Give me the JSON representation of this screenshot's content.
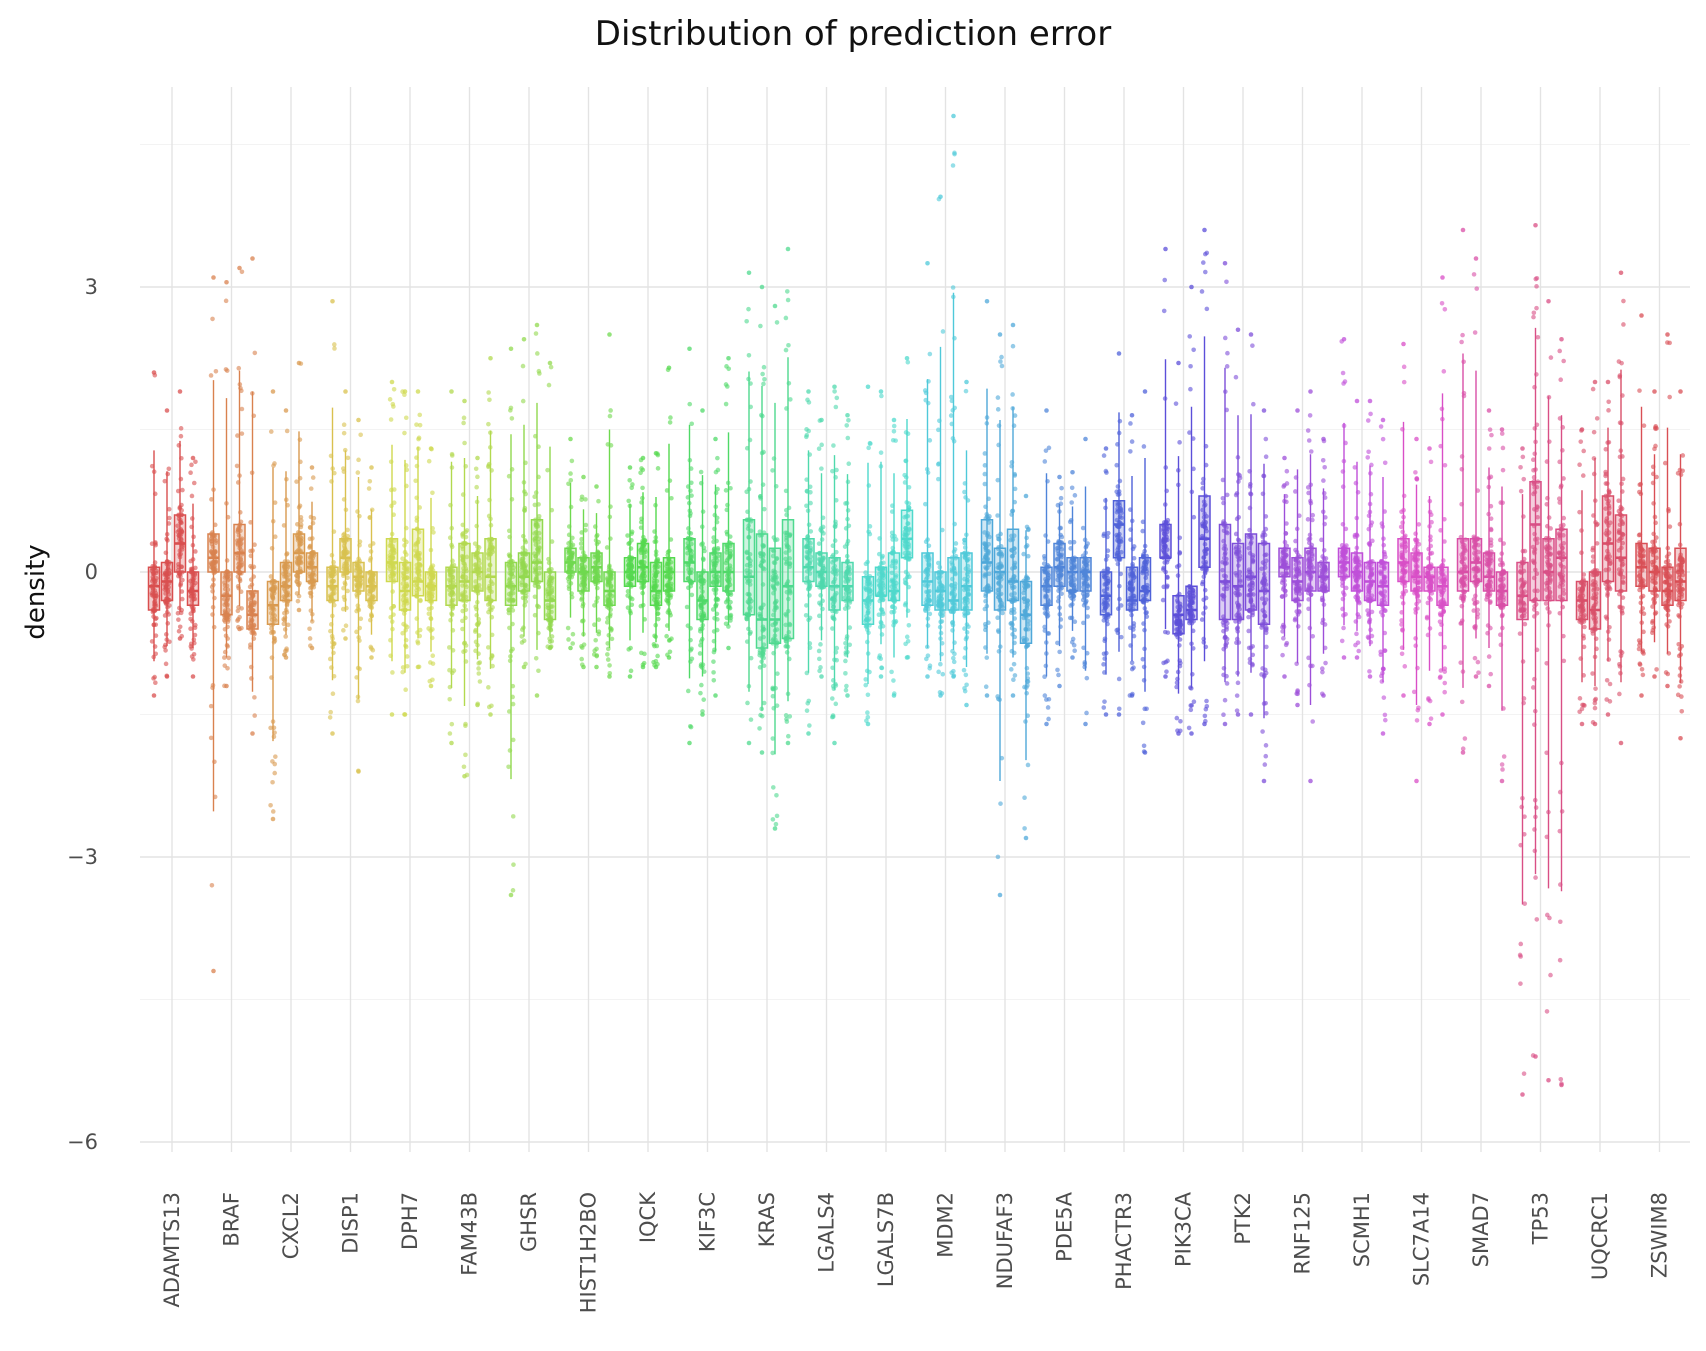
{
  "chart_data": {
    "type": "boxplot",
    "title": "Distribution of prediction error",
    "xlabel": "",
    "ylabel": "density",
    "ylim": [
      -6.0,
      5.0
    ],
    "yticks": [
      3,
      0,
      -3,
      -6
    ],
    "ytick_labels": [
      "3",
      "0",
      "−3",
      "−6"
    ],
    "grid": true,
    "legend": "none",
    "boxes_per_category": 4,
    "categories": [
      "ADAMTS13",
      "BRAF",
      "CXCL2",
      "DISP1",
      "DPH7",
      "FAM43B",
      "GHSR",
      "HIST1H2BO",
      "IQCK",
      "KIF3C",
      "KRAS",
      "LGALS4",
      "LGALS7B",
      "MDM2",
      "NDUFAF3",
      "PDE5A",
      "PHACTR3",
      "PIK3CA",
      "PTK2",
      "RNF125",
      "SCMH1",
      "SLC7A14",
      "SMAD7",
      "TP53",
      "UQCRC1",
      "ZSWIM8"
    ],
    "colors": [
      "#d94f4f",
      "#d9824f",
      "#d99a4f",
      "#d9c14f",
      "#cfd94f",
      "#b2d94f",
      "#92d94f",
      "#6fd94f",
      "#55d94f",
      "#4fd968",
      "#4fd98f",
      "#4fd9ad",
      "#4fd9cc",
      "#4fc9d9",
      "#4fa8d9",
      "#4f85d9",
      "#4f62d9",
      "#5c4fd9",
      "#7e4fd9",
      "#9d4fd9",
      "#c04fd9",
      "#d94fc7",
      "#d94fa7",
      "#d94f86",
      "#d94f69",
      "#d94f55"
    ],
    "series": [
      {
        "name": "ADAMTS13",
        "boxes": [
          [
            -1.3,
            -0.4,
            -0.15,
            0.05,
            2.1
          ],
          [
            -1.1,
            -0.3,
            -0.1,
            0.1,
            1.7
          ],
          [
            -0.7,
            0.0,
            0.3,
            0.6,
            1.9
          ],
          [
            -1.1,
            -0.35,
            -0.2,
            0.0,
            1.2
          ]
        ]
      },
      {
        "name": "BRAF",
        "boxes": [
          [
            -4.2,
            0.0,
            0.15,
            0.4,
            3.1
          ],
          [
            -1.2,
            -0.45,
            -0.25,
            0.0,
            3.05
          ],
          [
            -0.6,
            0.0,
            0.2,
            0.5,
            3.2
          ],
          [
            -1.7,
            -0.6,
            -0.45,
            -0.2,
            3.3
          ]
        ]
      },
      {
        "name": "CXCL2",
        "boxes": [
          [
            -2.6,
            -0.55,
            -0.35,
            -0.1,
            1.9
          ],
          [
            -0.9,
            -0.3,
            -0.15,
            0.1,
            1.7
          ],
          [
            -0.4,
            0.0,
            0.2,
            0.4,
            2.2
          ],
          [
            -0.8,
            -0.1,
            0.05,
            0.2,
            1.1
          ]
        ]
      },
      {
        "name": "DISP1",
        "boxes": [
          [
            -1.7,
            -0.3,
            -0.15,
            0.05,
            2.85
          ],
          [
            -0.7,
            0.0,
            0.15,
            0.35,
            1.9
          ],
          [
            -2.1,
            -0.2,
            -0.05,
            0.1,
            1.6
          ],
          [
            -0.9,
            -0.3,
            -0.15,
            0.0,
            1.1
          ]
        ]
      },
      {
        "name": "DPH7",
        "boxes": [
          [
            -1.5,
            -0.1,
            0.1,
            0.35,
            2.0
          ],
          [
            -1.5,
            -0.4,
            -0.2,
            0.1,
            1.9
          ],
          [
            -1.0,
            -0.25,
            -0.1,
            0.45,
            1.9
          ],
          [
            -1.2,
            -0.3,
            -0.15,
            0.0,
            1.3
          ]
        ]
      },
      {
        "name": "FAM43B",
        "boxes": [
          [
            -1.8,
            -0.35,
            -0.15,
            0.05,
            1.9
          ],
          [
            -2.15,
            -0.3,
            -0.1,
            0.3,
            1.8
          ],
          [
            -1.4,
            -0.2,
            0.0,
            0.2,
            1.2
          ],
          [
            -1.5,
            -0.3,
            -0.05,
            0.35,
            2.25
          ]
        ]
      },
      {
        "name": "GHSR",
        "boxes": [
          [
            -3.4,
            -0.35,
            -0.15,
            0.1,
            2.35
          ],
          [
            -1.0,
            -0.2,
            -0.05,
            0.2,
            2.45
          ],
          [
            -1.3,
            -0.1,
            0.1,
            0.55,
            2.6
          ],
          [
            -0.8,
            -0.5,
            -0.3,
            0.0,
            2.2
          ]
        ]
      },
      {
        "name": "HIST1H2BO",
        "boxes": [
          [
            -0.8,
            0.0,
            0.1,
            0.25,
            1.4
          ],
          [
            -1.0,
            -0.2,
            0.0,
            0.15,
            1.0
          ],
          [
            -1.0,
            -0.1,
            0.05,
            0.2,
            0.9
          ],
          [
            -1.1,
            -0.35,
            -0.2,
            0.0,
            2.5
          ]
        ]
      },
      {
        "name": "IQCK",
        "boxes": [
          [
            -1.1,
            -0.15,
            0.0,
            0.15,
            1.1
          ],
          [
            -1.0,
            -0.1,
            0.05,
            0.3,
            1.2
          ],
          [
            -1.0,
            -0.35,
            -0.2,
            0.1,
            1.25
          ],
          [
            -0.9,
            -0.2,
            0.0,
            0.15,
            2.15
          ]
        ]
      },
      {
        "name": "KIF3C",
        "boxes": [
          [
            -1.8,
            -0.1,
            0.1,
            0.35,
            2.35
          ],
          [
            -1.5,
            -0.5,
            -0.3,
            0.0,
            1.7
          ],
          [
            -1.3,
            -0.15,
            0.0,
            0.2,
            1.4
          ],
          [
            -0.8,
            -0.2,
            0.0,
            0.3,
            2.25
          ]
        ]
      },
      {
        "name": "KRAS",
        "boxes": [
          [
            -1.8,
            -0.45,
            -0.05,
            0.55,
            3.15
          ],
          [
            -1.9,
            -0.8,
            -0.5,
            0.4,
            3.0
          ],
          [
            -2.7,
            -0.75,
            -0.5,
            0.25,
            2.8
          ],
          [
            -1.8,
            -0.7,
            -0.15,
            0.55,
            3.4
          ]
        ]
      },
      {
        "name": "LGALS4",
        "boxes": [
          [
            -1.7,
            -0.1,
            0.05,
            0.35,
            1.9
          ],
          [
            -1.1,
            -0.15,
            0.0,
            0.2,
            1.6
          ],
          [
            -1.8,
            -0.4,
            -0.15,
            0.15,
            1.95
          ],
          [
            -1.3,
            -0.3,
            -0.15,
            0.1,
            1.65
          ]
        ]
      },
      {
        "name": "LGALS7B",
        "boxes": [
          [
            -1.6,
            -0.55,
            -0.3,
            -0.05,
            1.95
          ],
          [
            -1.1,
            -0.25,
            -0.25,
            0.05,
            1.9
          ],
          [
            -1.3,
            -0.3,
            -0.2,
            0.2,
            1.6
          ],
          [
            -0.9,
            0.15,
            0.35,
            0.65,
            2.25
          ]
        ]
      },
      {
        "name": "MDM2",
        "boxes": [
          [
            -1.1,
            -0.35,
            -0.1,
            0.2,
            3.25
          ],
          [
            -1.3,
            -0.4,
            -0.2,
            0.0,
            3.95
          ],
          [
            -1.1,
            -0.4,
            -0.3,
            0.15,
            4.8
          ],
          [
            -1.4,
            -0.4,
            -0.15,
            0.2,
            2.0
          ]
        ]
      },
      {
        "name": "NDUFAF3",
        "boxes": [
          [
            -1.3,
            -0.2,
            0.1,
            0.55,
            2.85
          ],
          [
            -3.4,
            -0.4,
            0.0,
            0.25,
            2.5
          ],
          [
            -1.3,
            -0.3,
            -0.1,
            0.45,
            2.6
          ],
          [
            -2.8,
            -0.75,
            -0.45,
            -0.1,
            0.8
          ]
        ]
      },
      {
        "name": "PDE5A",
        "boxes": [
          [
            -1.6,
            -0.35,
            -0.15,
            0.05,
            1.7
          ],
          [
            -1.2,
            -0.15,
            0.05,
            0.3,
            1.0
          ],
          [
            -0.9,
            -0.2,
            0.0,
            0.15,
            1.05
          ],
          [
            -1.6,
            -0.2,
            0.0,
            0.15,
            1.4
          ]
        ]
      },
      {
        "name": "PHACTR3",
        "boxes": [
          [
            -1.5,
            -0.45,
            -0.25,
            0.0,
            1.3
          ],
          [
            -1.5,
            0.15,
            0.5,
            0.75,
            2.3
          ],
          [
            -1.3,
            -0.4,
            -0.3,
            0.05,
            1.65
          ],
          [
            -1.9,
            -0.3,
            -0.2,
            0.15,
            1.9
          ]
        ]
      },
      {
        "name": "PIK3CA",
        "boxes": [
          [
            -1.1,
            0.15,
            0.15,
            0.5,
            3.4
          ],
          [
            -1.7,
            -0.65,
            -0.45,
            -0.25,
            2.2
          ],
          [
            -1.7,
            -0.5,
            -0.4,
            -0.15,
            3.0
          ],
          [
            -1.6,
            0.05,
            0.35,
            0.8,
            3.6
          ]
        ]
      },
      {
        "name": "PTK2",
        "boxes": [
          [
            -1.6,
            -0.5,
            -0.1,
            0.5,
            3.25
          ],
          [
            -1.5,
            -0.5,
            -0.15,
            0.3,
            2.55
          ],
          [
            -1.5,
            -0.4,
            -0.05,
            0.4,
            2.5
          ],
          [
            -2.2,
            -0.55,
            -0.2,
            0.3,
            1.7
          ]
        ]
      },
      {
        "name": "RNF125",
        "boxes": [
          [
            -1.1,
            -0.05,
            0.05,
            0.25,
            1.2
          ],
          [
            -1.4,
            -0.3,
            -0.1,
            0.15,
            1.7
          ],
          [
            -2.2,
            -0.2,
            0.0,
            0.25,
            1.9
          ],
          [
            -1.3,
            -0.2,
            -0.05,
            0.1,
            1.4
          ]
        ]
      },
      {
        "name": "SCMH1",
        "boxes": [
          [
            -0.9,
            -0.05,
            0.1,
            0.25,
            2.45
          ],
          [
            -0.9,
            -0.2,
            0.0,
            0.2,
            1.8
          ],
          [
            -1.1,
            -0.3,
            -0.1,
            0.1,
            1.8
          ],
          [
            -1.7,
            -0.35,
            -0.15,
            0.1,
            1.6
          ]
        ]
      },
      {
        "name": "SLC7A14",
        "boxes": [
          [
            -1.3,
            -0.1,
            0.1,
            0.35,
            2.4
          ],
          [
            -2.2,
            -0.2,
            -0.05,
            0.2,
            1.4
          ],
          [
            -1.6,
            -0.2,
            -0.05,
            0.05,
            1.3
          ],
          [
            -1.5,
            -0.35,
            -0.15,
            0.05,
            3.1
          ]
        ]
      },
      {
        "name": "SMAD7",
        "boxes": [
          [
            -1.9,
            -0.2,
            0.0,
            0.35,
            3.6
          ],
          [
            -1.1,
            -0.1,
            0.1,
            0.35,
            3.3
          ],
          [
            -1.2,
            -0.2,
            -0.05,
            0.2,
            1.7
          ],
          [
            -2.2,
            -0.35,
            -0.2,
            0.0,
            1.5
          ]
        ]
      },
      {
        "name": "TP53",
        "boxes": [
          [
            -5.5,
            -0.5,
            -0.25,
            0.1,
            1.3
          ],
          [
            -5.1,
            -0.3,
            0.5,
            0.95,
            3.65
          ],
          [
            -5.35,
            -0.3,
            0.0,
            0.35,
            2.85
          ],
          [
            -5.4,
            -0.3,
            0.15,
            0.45,
            2.45
          ]
        ]
      },
      {
        "name": "UQCRC1",
        "boxes": [
          [
            -1.6,
            -0.5,
            -0.3,
            -0.1,
            1.5
          ],
          [
            -1.6,
            -0.6,
            -0.4,
            0.0,
            2.0
          ],
          [
            -1.5,
            -0.1,
            0.3,
            0.8,
            2.0
          ],
          [
            -1.8,
            -0.2,
            0.15,
            0.6,
            3.15
          ]
        ]
      },
      {
        "name": "ZSWIM8",
        "boxes": [
          [
            -1.3,
            -0.15,
            0.05,
            0.3,
            2.7
          ],
          [
            -1.1,
            -0.2,
            0.0,
            0.25,
            1.9
          ],
          [
            -1.2,
            -0.35,
            -0.2,
            0.05,
            2.5
          ],
          [
            -1.75,
            -0.3,
            -0.1,
            0.25,
            1.9
          ]
        ]
      }
    ]
  }
}
